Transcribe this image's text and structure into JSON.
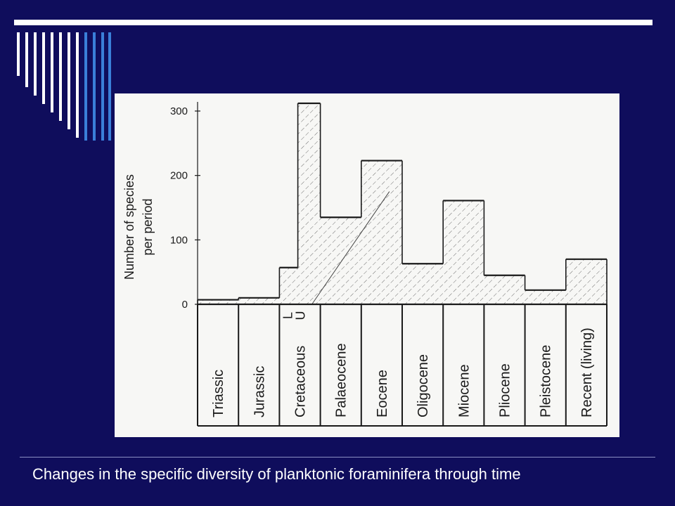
{
  "slide": {
    "caption": "Changes in the specific diversity of planktonic foraminifera through time",
    "colors": {
      "background": "#0f0d5c",
      "rule": "#ffffff",
      "accent_stripes": [
        "#ffffff",
        "#3a7fd9"
      ]
    }
  },
  "chart_data": {
    "type": "bar",
    "title": "",
    "ylabel_lines": [
      "Number of species",
      "per period"
    ],
    "ylim": [
      0,
      300
    ],
    "yticks": [
      0,
      100,
      200,
      300
    ],
    "grid": false,
    "categories": [
      "Triassic",
      "Jurassic",
      "Cretaceous",
      "Palaeocene",
      "Eocene",
      "Oligocene",
      "Miocene",
      "Pliocene",
      "Pleistocene",
      "Recent (living)"
    ],
    "cretaceous_subdivisions": [
      "L",
      "U"
    ],
    "steps": [
      {
        "period": "Triassic",
        "value": 7
      },
      {
        "period": "Jurassic",
        "value": 10
      },
      {
        "period": "Cretaceous L",
        "value": 57
      },
      {
        "period": "Cretaceous U",
        "value": 312
      },
      {
        "period": "Palaeocene",
        "value": 135
      },
      {
        "period": "Eocene",
        "value": 223
      },
      {
        "period": "Oligocene",
        "value": 63
      },
      {
        "period": "Miocene",
        "value": 161
      },
      {
        "period": "Pliocene",
        "value": 45
      },
      {
        "period": "Pleistocene",
        "value": 22
      },
      {
        "period": "Recent (living)",
        "value": 70
      }
    ],
    "fill": "hatched"
  }
}
